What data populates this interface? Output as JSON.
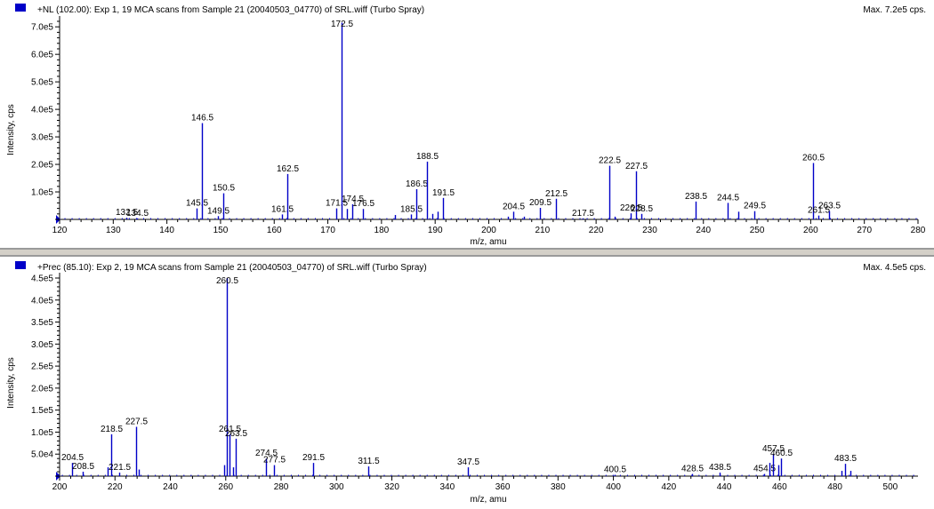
{
  "panels": [
    {
      "title": "+NL (102.00): Exp 1, 19 MCA scans from Sample 21 (20040503_04770) of SRL.wiff (Turbo Spray)",
      "max_label": "Max. 7.2e5 cps.",
      "legend_color": "#0000c8"
    },
    {
      "title": "+Prec (85.10): Exp 2, 19 MCA scans from Sample 21 (20040503_04770) of SRL.wiff (Turbo Spray)",
      "max_label": "Max. 4.5e5 cps.",
      "legend_color": "#0000c8"
    }
  ],
  "chart_data": [
    {
      "type": "bar",
      "xlabel": "m/z, amu",
      "ylabel": "Intensity, cps",
      "xlim": [
        120,
        280
      ],
      "ylim": [
        0,
        720000
      ],
      "x_ticks": [
        120,
        130,
        140,
        150,
        160,
        170,
        180,
        190,
        200,
        210,
        220,
        230,
        240,
        250,
        260,
        270,
        280
      ],
      "y_ticks": [
        {
          "v": 100000,
          "label": "1.0e5"
        },
        {
          "v": 200000,
          "label": "2.0e5"
        },
        {
          "v": 300000,
          "label": "3.0e5"
        },
        {
          "v": 400000,
          "label": "4.0e5"
        },
        {
          "v": 500000,
          "label": "5.0e5"
        },
        {
          "v": 600000,
          "label": "6.0e5"
        },
        {
          "v": 700000,
          "label": "7.0e5"
        }
      ],
      "peak_color": "#0000c8",
      "peaks": [
        {
          "x": 132.5,
          "y": 6000,
          "label": "132.5"
        },
        {
          "x": 134.5,
          "y": 4000,
          "label": "134.5"
        },
        {
          "x": 145.5,
          "y": 40000,
          "label": "145.5"
        },
        {
          "x": 146.5,
          "y": 350000,
          "label": "146.5"
        },
        {
          "x": 149.5,
          "y": 12000,
          "label": "149.5"
        },
        {
          "x": 150.5,
          "y": 95000,
          "label": "150.5"
        },
        {
          "x": 161.5,
          "y": 18000,
          "label": "161.5"
        },
        {
          "x": 162.5,
          "y": 165000,
          "label": "162.5"
        },
        {
          "x": 171.5,
          "y": 40000,
          "label": "171.5"
        },
        {
          "x": 172.5,
          "y": 715000,
          "label": "172.5"
        },
        {
          "x": 173.5,
          "y": 38000,
          "label": ""
        },
        {
          "x": 174.5,
          "y": 55000,
          "label": "174.5"
        },
        {
          "x": 176.5,
          "y": 38000,
          "label": "176.5"
        },
        {
          "x": 182.5,
          "y": 16000,
          "label": ""
        },
        {
          "x": 185.5,
          "y": 18000,
          "label": "185.5"
        },
        {
          "x": 186.5,
          "y": 110000,
          "label": "186.5"
        },
        {
          "x": 188.5,
          "y": 210000,
          "label": "188.5"
        },
        {
          "x": 189.5,
          "y": 20000,
          "label": ""
        },
        {
          "x": 190.5,
          "y": 28000,
          "label": ""
        },
        {
          "x": 191.5,
          "y": 78000,
          "label": "191.5"
        },
        {
          "x": 203.5,
          "y": 10000,
          "label": ""
        },
        {
          "x": 204.5,
          "y": 28000,
          "label": "204.5"
        },
        {
          "x": 206.5,
          "y": 10000,
          "label": ""
        },
        {
          "x": 209.5,
          "y": 42000,
          "label": "209.5"
        },
        {
          "x": 212.5,
          "y": 75000,
          "label": "212.5"
        },
        {
          "x": 217.5,
          "y": 4000,
          "label": "217.5"
        },
        {
          "x": 222.5,
          "y": 195000,
          "label": "222.5"
        },
        {
          "x": 223.5,
          "y": 10000,
          "label": ""
        },
        {
          "x": 226.5,
          "y": 22000,
          "label": "226.5"
        },
        {
          "x": 227.5,
          "y": 175000,
          "label": "227.5"
        },
        {
          "x": 228.5,
          "y": 20000,
          "label": "228.5"
        },
        {
          "x": 238.5,
          "y": 65000,
          "label": "238.5"
        },
        {
          "x": 244.5,
          "y": 60000,
          "label": "244.5"
        },
        {
          "x": 246.5,
          "y": 28000,
          "label": ""
        },
        {
          "x": 249.5,
          "y": 30000,
          "label": "249.5"
        },
        {
          "x": 260.5,
          "y": 205000,
          "label": "260.5"
        },
        {
          "x": 261.5,
          "y": 14000,
          "label": "261.5"
        },
        {
          "x": 263.5,
          "y": 30000,
          "label": "263.5"
        }
      ]
    },
    {
      "type": "bar",
      "xlabel": "m/z, amu",
      "ylabel": "Intensity, cps",
      "xlim": [
        200,
        510
      ],
      "ylim": [
        0,
        450000
      ],
      "x_ticks": [
        200,
        220,
        240,
        260,
        280,
        300,
        320,
        340,
        360,
        380,
        400,
        420,
        440,
        460,
        480,
        500
      ],
      "y_ticks": [
        {
          "v": 50000,
          "label": "5.0e4"
        },
        {
          "v": 100000,
          "label": "1.0e5"
        },
        {
          "v": 150000,
          "label": "1.5e5"
        },
        {
          "v": 200000,
          "label": "2.0e5"
        },
        {
          "v": 250000,
          "label": "2.5e5"
        },
        {
          "v": 300000,
          "label": "3.0e5"
        },
        {
          "v": 350000,
          "label": "3.5e5"
        },
        {
          "v": 400000,
          "label": "4.0e5"
        },
        {
          "v": 450000,
          "label": "4.5e5"
        }
      ],
      "peak_color": "#0000c8",
      "peaks": [
        {
          "x": 204.5,
          "y": 30000,
          "label": "204.5"
        },
        {
          "x": 208.5,
          "y": 10000,
          "label": "208.5"
        },
        {
          "x": 217.5,
          "y": 20000,
          "label": ""
        },
        {
          "x": 218.5,
          "y": 95000,
          "label": "218.5"
        },
        {
          "x": 221.5,
          "y": 8000,
          "label": "221.5"
        },
        {
          "x": 227.5,
          "y": 112000,
          "label": "227.5"
        },
        {
          "x": 228.5,
          "y": 15000,
          "label": ""
        },
        {
          "x": 259.5,
          "y": 25000,
          "label": ""
        },
        {
          "x": 260.5,
          "y": 450000,
          "label": "260.5"
        },
        {
          "x": 261.5,
          "y": 95000,
          "label": "261.5"
        },
        {
          "x": 262.5,
          "y": 20000,
          "label": ""
        },
        {
          "x": 263.5,
          "y": 85000,
          "label": "263.5"
        },
        {
          "x": 274.5,
          "y": 40000,
          "label": "274.5"
        },
        {
          "x": 277.5,
          "y": 25000,
          "label": "277.5"
        },
        {
          "x": 291.5,
          "y": 30000,
          "label": "291.5"
        },
        {
          "x": 311.5,
          "y": 22000,
          "label": "311.5"
        },
        {
          "x": 347.5,
          "y": 20000,
          "label": "347.5"
        },
        {
          "x": 400.5,
          "y": 3000,
          "label": "400.5"
        },
        {
          "x": 428.5,
          "y": 5000,
          "label": "428.5"
        },
        {
          "x": 438.5,
          "y": 8000,
          "label": "438.5"
        },
        {
          "x": 454.5,
          "y": 5000,
          "label": "454.5"
        },
        {
          "x": 456.5,
          "y": 30000,
          "label": ""
        },
        {
          "x": 457.5,
          "y": 50000,
          "label": "457.5"
        },
        {
          "x": 459.5,
          "y": 25000,
          "label": ""
        },
        {
          "x": 460.5,
          "y": 40000,
          "label": "460.5"
        },
        {
          "x": 482.5,
          "y": 12000,
          "label": ""
        },
        {
          "x": 483.5,
          "y": 28000,
          "label": "483.5"
        },
        {
          "x": 485.5,
          "y": 12000,
          "label": ""
        }
      ]
    }
  ]
}
